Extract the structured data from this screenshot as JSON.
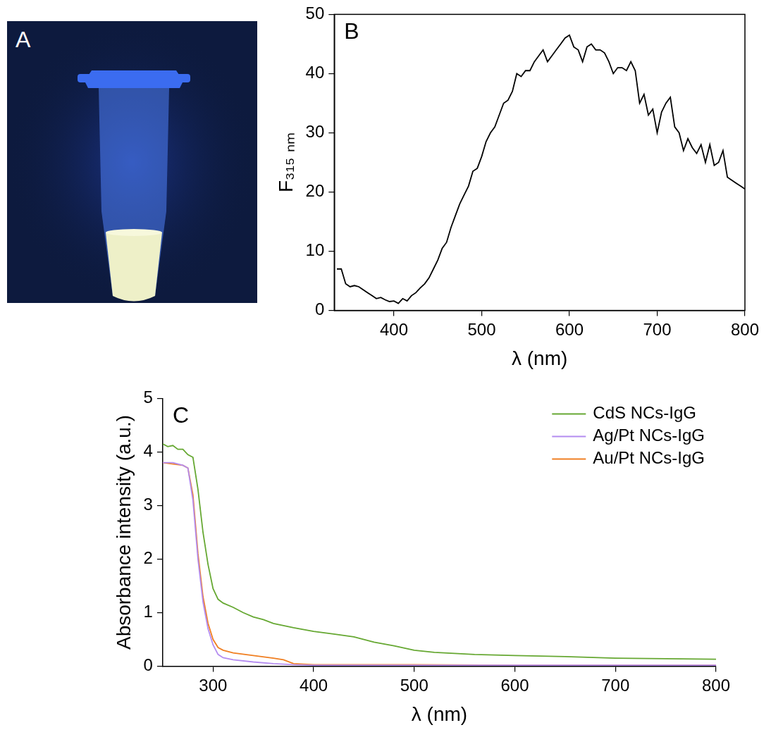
{
  "photo": {
    "panel": "A"
  },
  "chart_data": [
    {
      "panel": "B",
      "type": "line",
      "xlabel": "λ (nm)",
      "ylabel": "F₃₁₅ ₙₘ",
      "xlim": [
        332,
        800
      ],
      "xticks": [
        400,
        500,
        600,
        700,
        800
      ],
      "ylim": [
        0,
        50
      ],
      "yticks": [
        0,
        10,
        20,
        30,
        40,
        50
      ],
      "grid": false,
      "color": "#000000",
      "x": [
        335,
        340,
        345,
        350,
        355,
        360,
        365,
        370,
        375,
        380,
        385,
        390,
        395,
        400,
        405,
        410,
        415,
        420,
        425,
        430,
        435,
        440,
        445,
        450,
        455,
        460,
        465,
        470,
        475,
        480,
        485,
        490,
        495,
        500,
        505,
        510,
        515,
        520,
        525,
        530,
        535,
        540,
        545,
        550,
        555,
        560,
        565,
        570,
        575,
        580,
        585,
        590,
        595,
        600,
        605,
        610,
        615,
        620,
        625,
        630,
        635,
        640,
        645,
        650,
        655,
        660,
        665,
        670,
        675,
        680,
        685,
        690,
        695,
        700,
        705,
        710,
        715,
        720,
        725,
        730,
        735,
        740,
        745,
        750,
        755,
        760,
        765,
        770,
        775,
        780,
        785,
        790,
        795,
        800
      ],
      "values": [
        7,
        7,
        4.5,
        4,
        4.2,
        4,
        3.5,
        3,
        2.5,
        2,
        2.2,
        1.8,
        1.5,
        1.6,
        1.2,
        2,
        1.6,
        2.5,
        3,
        3.8,
        4.5,
        5.5,
        7,
        8.5,
        10.5,
        11.5,
        14,
        16,
        18,
        19.5,
        21,
        23.5,
        24,
        26,
        28.5,
        30,
        31,
        33,
        35,
        35.5,
        37,
        40,
        39.5,
        40.5,
        40.5,
        42,
        43,
        44,
        42,
        43,
        44,
        45,
        46,
        46.5,
        44.5,
        44,
        42,
        44.5,
        45,
        44,
        44,
        43.5,
        42,
        40,
        41,
        41,
        40.5,
        42,
        40.5,
        35,
        36.5,
        33,
        34,
        30,
        33.5,
        35,
        36,
        31,
        30,
        27,
        29,
        27.5,
        26.5,
        28,
        25,
        28,
        24.5,
        25,
        27,
        22.5,
        22,
        21.5,
        21,
        20.5
      ]
    },
    {
      "panel": "C",
      "type": "line",
      "xlabel": "λ (nm)",
      "ylabel": "Absorbance intensity (a.u.)",
      "xlim": [
        250,
        800
      ],
      "xticks": [
        300,
        400,
        500,
        600,
        700,
        800
      ],
      "ylim": [
        0,
        5
      ],
      "yticks": [
        0,
        1,
        2,
        3,
        4,
        5
      ],
      "grid": false,
      "legend": "upper right",
      "series": [
        {
          "name": "CdS NCs-IgG",
          "color": "#66a832",
          "x": [
            250,
            255,
            260,
            265,
            270,
            275,
            280,
            285,
            290,
            295,
            300,
            305,
            310,
            320,
            330,
            340,
            350,
            360,
            380,
            400,
            420,
            440,
            460,
            480,
            500,
            520,
            540,
            560,
            600,
            650,
            700,
            750,
            800
          ],
          "values": [
            4.15,
            4.1,
            4.12,
            4.05,
            4.05,
            3.95,
            3.9,
            3.3,
            2.5,
            1.9,
            1.45,
            1.25,
            1.18,
            1.1,
            1.0,
            0.92,
            0.87,
            0.8,
            0.72,
            0.65,
            0.6,
            0.55,
            0.45,
            0.38,
            0.3,
            0.26,
            0.24,
            0.22,
            0.2,
            0.18,
            0.15,
            0.14,
            0.13
          ]
        },
        {
          "name": "Ag/Pt NCs-IgG",
          "color": "#b48cf0",
          "x": [
            250,
            260,
            270,
            275,
            280,
            285,
            290,
            295,
            300,
            305,
            310,
            320,
            340,
            360,
            380,
            400,
            500,
            600,
            700,
            800
          ],
          "values": [
            3.8,
            3.8,
            3.75,
            3.7,
            3.1,
            2.0,
            1.2,
            0.7,
            0.4,
            0.22,
            0.16,
            0.12,
            0.08,
            0.05,
            0.03,
            0.02,
            0.02,
            0.02,
            0.02,
            0.02
          ]
        },
        {
          "name": "Au/Pt NCs-IgG",
          "color": "#f07f22",
          "x": [
            250,
            270,
            275,
            280,
            285,
            290,
            295,
            300,
            305,
            310,
            320,
            340,
            360,
            370,
            380,
            400,
            500,
            600,
            800
          ],
          "values": [
            3.8,
            3.75,
            3.7,
            3.2,
            2.1,
            1.3,
            0.8,
            0.5,
            0.35,
            0.3,
            0.25,
            0.2,
            0.15,
            0.12,
            0.05,
            0.03,
            0.03,
            0.02,
            0.02
          ]
        }
      ]
    }
  ]
}
